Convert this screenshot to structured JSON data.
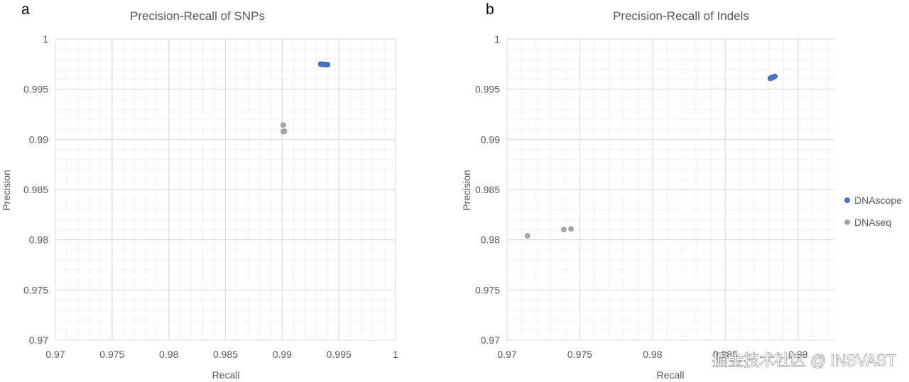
{
  "panels": [
    {
      "letter": "a",
      "chart_data": {
        "type": "scatter",
        "title": "Precision-Recall of SNPs",
        "xlabel": "Recall",
        "ylabel": "Precision",
        "xlim": [
          0.97,
          1
        ],
        "ylim": [
          0.97,
          1
        ],
        "xticks": [
          "0.97",
          "0.975",
          "0.98",
          "0.985",
          "0.99",
          "0.995",
          "1"
        ],
        "yticks": [
          "0.97",
          "0.975",
          "0.98",
          "0.985",
          "0.99",
          "0.995",
          "1"
        ],
        "grid": true,
        "series": [
          {
            "name": "DNAscope",
            "color": "#4472c4",
            "points": [
              [
                0.9934,
                0.9975
              ],
              [
                0.9936,
                0.99748
              ],
              [
                0.9938,
                0.99745
              ],
              [
                0.994,
                0.99745
              ]
            ]
          },
          {
            "name": "DNAseq",
            "color": "#a5a5a5",
            "points": [
              [
                0.9901,
                0.99143
              ],
              [
                0.9901,
                0.99078
              ],
              [
                0.9902,
                0.9908
              ]
            ]
          }
        ]
      }
    },
    {
      "letter": "b",
      "chart_data": {
        "type": "scatter",
        "title": "Precision-Recall of Indels",
        "xlabel": "Recall",
        "ylabel": "Precision",
        "xlim": [
          0.97,
          0.9925
        ],
        "ylim": [
          0.97,
          1
        ],
        "xticks": [
          "0.97",
          "0.975",
          "0.98",
          "0.985",
          "0.99"
        ],
        "yticks": [
          "0.97",
          "0.975",
          "0.98",
          "0.985",
          "0.99",
          "0.995",
          "1"
        ],
        "grid": true,
        "series": [
          {
            "name": "DNAscope",
            "color": "#4472c4",
            "points": [
              [
                0.9881,
                0.99608
              ],
              [
                0.9882,
                0.99615
              ],
              [
                0.9883,
                0.99622
              ],
              [
                0.9884,
                0.99628
              ]
            ]
          },
          {
            "name": "DNAseq",
            "color": "#a5a5a5",
            "points": [
              [
                0.9714,
                0.9804
              ],
              [
                0.9739,
                0.98102
              ],
              [
                0.9744,
                0.98108
              ]
            ]
          }
        ]
      }
    }
  ],
  "legend": {
    "placement": "right",
    "items": [
      {
        "label": "DNAscope",
        "color": "#4472c4"
      },
      {
        "label": "DNAseq",
        "color": "#a5a5a5"
      }
    ]
  },
  "watermark": "掘金技术社区 @ INSVAST"
}
